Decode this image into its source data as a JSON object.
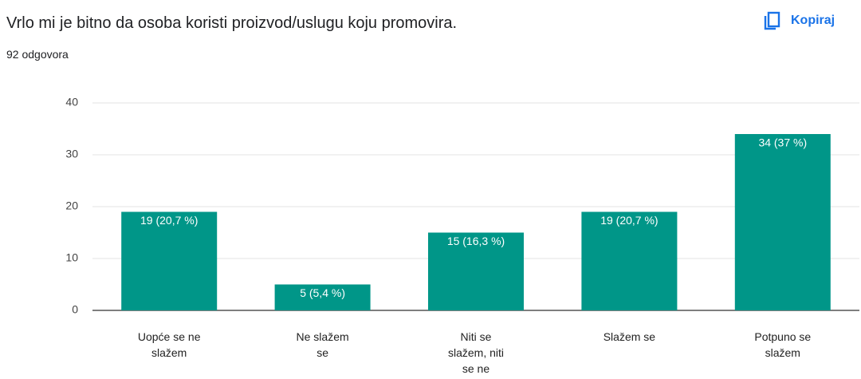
{
  "copy_button": "Kopiraj",
  "chart_data": {
    "type": "bar",
    "title": "Vrlo mi je bitno da osoba koristi proizvod/uslugu koju promovira.",
    "subtitle": "92 odgovora",
    "categories": [
      "Uopće se ne slažem",
      "Ne slažem se",
      "Niti se slažem, niti se ne slažem",
      "Slažem se",
      "Potpuno se slažem"
    ],
    "values": [
      19,
      5,
      15,
      19,
      34
    ],
    "value_labels": [
      "19 (20,7 %)",
      "5 (5,4 %)",
      "15 (16,3 %)",
      "19 (20,7 %)",
      "34 (37 %)"
    ],
    "color": "#009688",
    "ylim": [
      0,
      40
    ],
    "yticks": [
      0,
      10,
      20,
      30,
      40
    ],
    "grid": true
  }
}
